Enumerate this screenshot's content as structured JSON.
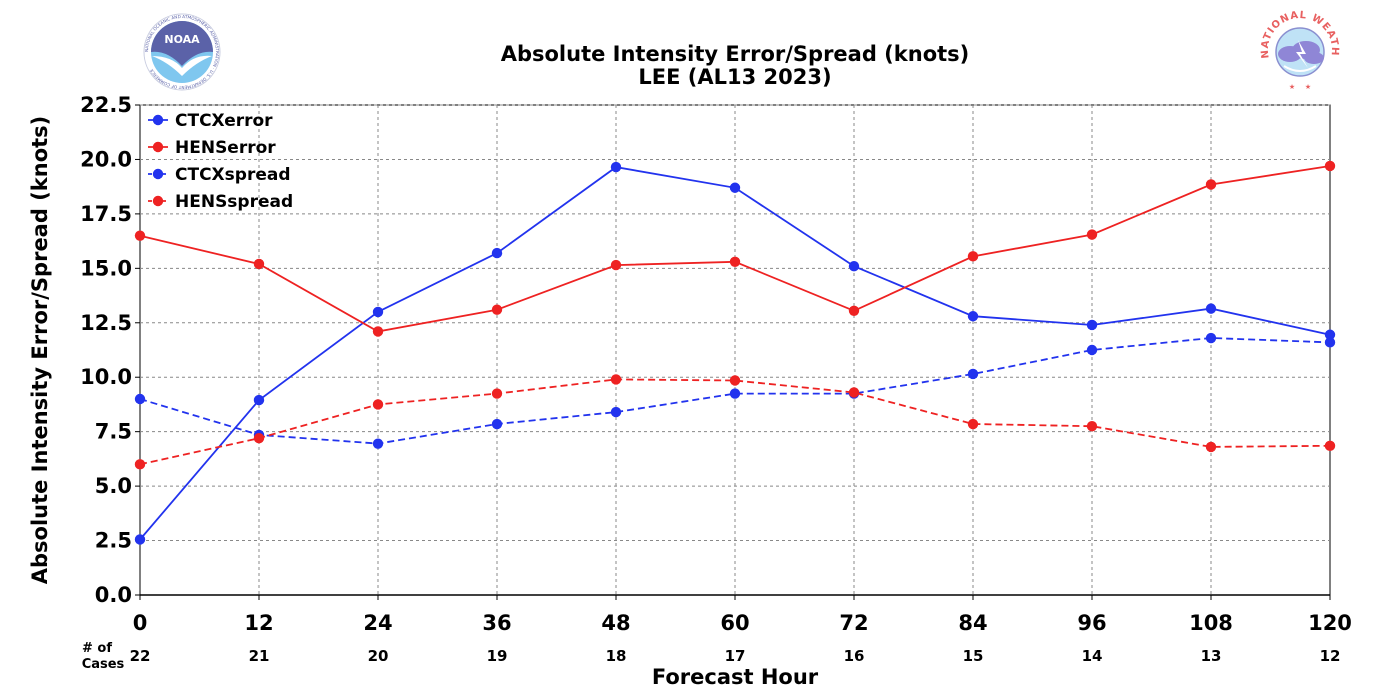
{
  "chart_data": {
    "type": "line",
    "title": "Absolute Intensity Error/Spread (knots)",
    "subtitle": "LEE (AL13 2023)",
    "xlabel": "Forecast Hour",
    "ylabel": "Absolute Intensity Error/Spread (knots)",
    "x": [
      0,
      12,
      24,
      36,
      48,
      60,
      72,
      84,
      96,
      108,
      120
    ],
    "x_tick_labels": [
      "0",
      "12",
      "24",
      "36",
      "48",
      "60",
      "72",
      "84",
      "96",
      "108",
      "120"
    ],
    "xlim": [
      0,
      120
    ],
    "ylim": [
      0,
      22.5
    ],
    "y_ticks": [
      0.0,
      2.5,
      5.0,
      7.5,
      10.0,
      12.5,
      15.0,
      17.5,
      20.0,
      22.5
    ],
    "y_tick_labels": [
      "0.0",
      "2.5",
      "5.0",
      "7.5",
      "10.0",
      "12.5",
      "15.0",
      "17.5",
      "20.0",
      "22.5"
    ],
    "grid": true,
    "legend_position": "top-left",
    "cases_label_line1": "# of",
    "cases_label_line2": "Cases",
    "cases": [
      "22",
      "21",
      "20",
      "19",
      "18",
      "17",
      "16",
      "15",
      "14",
      "13",
      "12"
    ],
    "series": [
      {
        "name": "CTCXerror",
        "color": "#2233ee",
        "dashed": false,
        "values": [
          2.55,
          8.95,
          13.0,
          15.7,
          19.65,
          18.7,
          15.1,
          12.8,
          12.4,
          13.15,
          11.95
        ]
      },
      {
        "name": "HENSerror",
        "color": "#ee2222",
        "dashed": false,
        "values": [
          16.5,
          15.2,
          12.1,
          13.1,
          15.15,
          15.3,
          13.05,
          15.55,
          16.55,
          18.85,
          19.7
        ]
      },
      {
        "name": "CTCXspread",
        "color": "#2233ee",
        "dashed": true,
        "values": [
          9.0,
          7.35,
          6.95,
          7.85,
          8.4,
          9.25,
          9.25,
          10.15,
          11.25,
          11.8,
          11.6
        ]
      },
      {
        "name": "HENSspread",
        "color": "#ee2222",
        "dashed": true,
        "values": [
          6.0,
          7.2,
          8.75,
          9.25,
          9.9,
          9.85,
          9.3,
          7.85,
          7.75,
          6.8,
          6.85
        ]
      }
    ]
  },
  "logos": {
    "left": {
      "name": "noaa-logo",
      "text": "NOAA",
      "ring_text": "NATIONAL OCEANIC AND ATMOSPHERIC ADMINISTRATION · U.S. DEPARTMENT OF COMMERCE"
    },
    "right": {
      "name": "nws-logo",
      "ring_text": "NATIONAL WEATHER SERVICE"
    }
  }
}
